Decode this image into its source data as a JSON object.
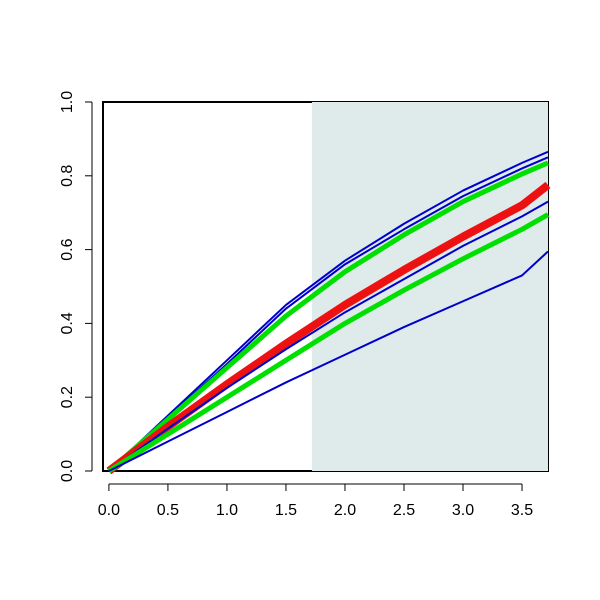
{
  "chart_data": {
    "type": "line",
    "x": [
      0,
      0.5,
      1,
      1.5,
      2,
      2.5,
      3,
      3.5,
      3.72
    ],
    "series": [
      {
        "color": "#0000cc",
        "width": 2,
        "values": [
          0,
          0.15,
          0.3,
          0.45,
          0.57,
          0.67,
          0.76,
          0.835,
          0.865
        ]
      },
      {
        "color": "#0000cc",
        "width": 2,
        "values": [
          0,
          0.145,
          0.29,
          0.44,
          0.56,
          0.655,
          0.745,
          0.82,
          0.85
        ]
      },
      {
        "color": "#00e000",
        "width": 5,
        "values": [
          0,
          0.14,
          0.28,
          0.42,
          0.54,
          0.64,
          0.73,
          0.805,
          0.835
        ]
      },
      {
        "color": "#ee1111",
        "width": 8,
        "values": [
          0,
          0.12,
          0.235,
          0.345,
          0.45,
          0.545,
          0.635,
          0.72,
          0.775
        ]
      },
      {
        "color": "#0000cc",
        "width": 2,
        "values": [
          0,
          0.115,
          0.225,
          0.33,
          0.43,
          0.52,
          0.61,
          0.69,
          0.73
        ]
      },
      {
        "color": "#00e000",
        "width": 5,
        "values": [
          0,
          0.1,
          0.2,
          0.3,
          0.4,
          0.49,
          0.575,
          0.655,
          0.695
        ]
      },
      {
        "color": "#0000cc",
        "width": 2,
        "values": [
          0,
          0.08,
          0.16,
          0.24,
          0.315,
          0.39,
          0.46,
          0.53,
          0.595
        ]
      }
    ],
    "shade_from": 1.72,
    "shade_color": "#dfeaea",
    "xlim": [
      -0.05,
      3.72
    ],
    "ylim": [
      0,
      1
    ],
    "xticks": [
      {
        "value": 0,
        "label": "0.0"
      },
      0.5,
      {
        "value": 1,
        "label": "1.0"
      },
      1.5,
      {
        "value": 2,
        "label": "2.0"
      },
      2.5,
      {
        "value": 3,
        "label": "3.0"
      },
      3.5
    ],
    "yticks": [
      {
        "value": 0,
        "label": "0.0"
      },
      0.2,
      0.4,
      0.6,
      0.8,
      {
        "value": 1,
        "label": "1.0"
      }
    ]
  }
}
